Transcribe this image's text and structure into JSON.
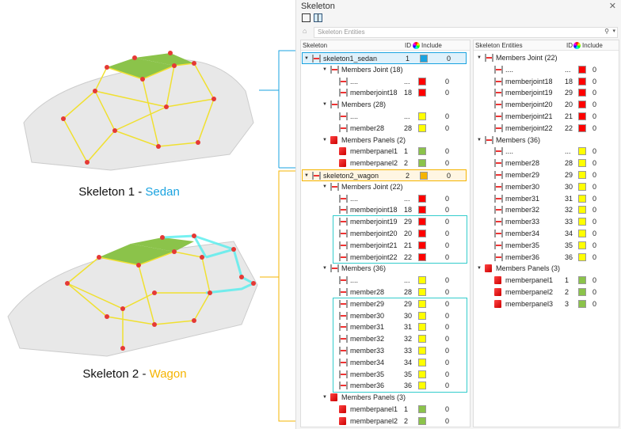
{
  "captions": {
    "sedan_prefix": "Skeleton 1 - ",
    "sedan": "Sedan",
    "wagon_prefix": "Skeleton 2 - ",
    "wagon": "Wagon"
  },
  "colors": {
    "sedan": "#1aa3e0",
    "wagon": "#f5b400",
    "joint": "#ff0000",
    "member": "#ffff00",
    "panel": "#8bc34a",
    "highlight": "#33cccc"
  },
  "panel": {
    "title": "Skeleton",
    "close": "✕",
    "search_placeholder": "Skeleton Entities",
    "left_headers": {
      "name": "Skeleton",
      "id": "ID",
      "include": "Include"
    },
    "right_headers": {
      "name": "Skeleton Entities",
      "id": "ID",
      "include": "Include"
    }
  },
  "left_rows": [
    {
      "lvl": 0,
      "t": "skel",
      "name": "skeleton1_sedan",
      "id": "1",
      "c": "#1aa3e0",
      "inc": "0"
    },
    {
      "lvl": 1,
      "t": "folder",
      "name": "Members Joint (18)"
    },
    {
      "lvl": 2,
      "t": "joint",
      "name": "....",
      "id": "...",
      "c": "#ff0000",
      "inc": "0"
    },
    {
      "lvl": 2,
      "t": "joint",
      "name": "memberjoint18",
      "id": "18",
      "c": "#ff0000",
      "inc": "0"
    },
    {
      "lvl": 1,
      "t": "folder",
      "name": "Members (28)"
    },
    {
      "lvl": 2,
      "t": "joint",
      "name": "....",
      "id": "...",
      "c": "#ffff00",
      "inc": "0"
    },
    {
      "lvl": 2,
      "t": "joint",
      "name": "member28",
      "id": "28",
      "c": "#ffff00",
      "inc": "0"
    },
    {
      "lvl": 1,
      "t": "pfolder",
      "name": "Members Panels (2)"
    },
    {
      "lvl": 2,
      "t": "panel",
      "name": "memberpanel1",
      "id": "1",
      "c": "#8bc34a",
      "inc": "0"
    },
    {
      "lvl": 2,
      "t": "panel",
      "name": "memberpanel2",
      "id": "2",
      "c": "#8bc34a",
      "inc": "0"
    },
    {
      "lvl": 0,
      "t": "skel",
      "name": "skeleton2_wagon",
      "id": "2",
      "c": "#f5b400",
      "inc": "0"
    },
    {
      "lvl": 1,
      "t": "folder",
      "name": "Members Joint (22)"
    },
    {
      "lvl": 2,
      "t": "joint",
      "name": "....",
      "id": "...",
      "c": "#ff0000",
      "inc": "0"
    },
    {
      "lvl": 2,
      "t": "joint",
      "name": "memberjoint18",
      "id": "18",
      "c": "#ff0000",
      "inc": "0"
    },
    {
      "lvl": 2,
      "t": "joint",
      "name": "memberjoint19",
      "id": "29",
      "c": "#ff0000",
      "inc": "0"
    },
    {
      "lvl": 2,
      "t": "joint",
      "name": "memberjoint20",
      "id": "20",
      "c": "#ff0000",
      "inc": "0"
    },
    {
      "lvl": 2,
      "t": "joint",
      "name": "memberjoint21",
      "id": "21",
      "c": "#ff0000",
      "inc": "0"
    },
    {
      "lvl": 2,
      "t": "joint",
      "name": "memberjoint22",
      "id": "22",
      "c": "#ff0000",
      "inc": "0"
    },
    {
      "lvl": 1,
      "t": "folder",
      "name": "Members (36)"
    },
    {
      "lvl": 2,
      "t": "joint",
      "name": "....",
      "id": "...",
      "c": "#ffff00",
      "inc": "0"
    },
    {
      "lvl": 2,
      "t": "joint",
      "name": "member28",
      "id": "28",
      "c": "#ffff00",
      "inc": "0"
    },
    {
      "lvl": 2,
      "t": "joint",
      "name": "member29",
      "id": "29",
      "c": "#ffff00",
      "inc": "0"
    },
    {
      "lvl": 2,
      "t": "joint",
      "name": "member30",
      "id": "30",
      "c": "#ffff00",
      "inc": "0"
    },
    {
      "lvl": 2,
      "t": "joint",
      "name": "member31",
      "id": "31",
      "c": "#ffff00",
      "inc": "0"
    },
    {
      "lvl": 2,
      "t": "joint",
      "name": "member32",
      "id": "32",
      "c": "#ffff00",
      "inc": "0"
    },
    {
      "lvl": 2,
      "t": "joint",
      "name": "member33",
      "id": "33",
      "c": "#ffff00",
      "inc": "0"
    },
    {
      "lvl": 2,
      "t": "joint",
      "name": "member34",
      "id": "34",
      "c": "#ffff00",
      "inc": "0"
    },
    {
      "lvl": 2,
      "t": "joint",
      "name": "member35",
      "id": "35",
      "c": "#ffff00",
      "inc": "0"
    },
    {
      "lvl": 2,
      "t": "joint",
      "name": "member36",
      "id": "36",
      "c": "#ffff00",
      "inc": "0"
    },
    {
      "lvl": 1,
      "t": "pfolder",
      "name": "Members Panels (3)"
    },
    {
      "lvl": 2,
      "t": "panel",
      "name": "memberpanel1",
      "id": "1",
      "c": "#8bc34a",
      "inc": "0"
    },
    {
      "lvl": 2,
      "t": "panel",
      "name": "memberpanel2",
      "id": "2",
      "c": "#8bc34a",
      "inc": "0"
    }
  ],
  "right_rows": [
    {
      "lvl": 0,
      "t": "folder",
      "name": "Members Joint (22)"
    },
    {
      "lvl": 1,
      "t": "joint",
      "name": "....",
      "id": "...",
      "c": "#ff0000",
      "inc": "0"
    },
    {
      "lvl": 1,
      "t": "joint",
      "name": "memberjoint18",
      "id": "18",
      "c": "#ff0000",
      "inc": "0"
    },
    {
      "lvl": 1,
      "t": "joint",
      "name": "memberjoint19",
      "id": "29",
      "c": "#ff0000",
      "inc": "0"
    },
    {
      "lvl": 1,
      "t": "joint",
      "name": "memberjoint20",
      "id": "20",
      "c": "#ff0000",
      "inc": "0"
    },
    {
      "lvl": 1,
      "t": "joint",
      "name": "memberjoint21",
      "id": "21",
      "c": "#ff0000",
      "inc": "0"
    },
    {
      "lvl": 1,
      "t": "joint",
      "name": "memberjoint22",
      "id": "22",
      "c": "#ff0000",
      "inc": "0"
    },
    {
      "lvl": 0,
      "t": "folder",
      "name": "Members (36)"
    },
    {
      "lvl": 1,
      "t": "joint",
      "name": "....",
      "id": "...",
      "c": "#ffff00",
      "inc": "0"
    },
    {
      "lvl": 1,
      "t": "joint",
      "name": "member28",
      "id": "28",
      "c": "#ffff00",
      "inc": "0"
    },
    {
      "lvl": 1,
      "t": "joint",
      "name": "member29",
      "id": "29",
      "c": "#ffff00",
      "inc": "0"
    },
    {
      "lvl": 1,
      "t": "joint",
      "name": "member30",
      "id": "30",
      "c": "#ffff00",
      "inc": "0"
    },
    {
      "lvl": 1,
      "t": "joint",
      "name": "member31",
      "id": "31",
      "c": "#ffff00",
      "inc": "0"
    },
    {
      "lvl": 1,
      "t": "joint",
      "name": "member32",
      "id": "32",
      "c": "#ffff00",
      "inc": "0"
    },
    {
      "lvl": 1,
      "t": "joint",
      "name": "member33",
      "id": "33",
      "c": "#ffff00",
      "inc": "0"
    },
    {
      "lvl": 1,
      "t": "joint",
      "name": "member34",
      "id": "34",
      "c": "#ffff00",
      "inc": "0"
    },
    {
      "lvl": 1,
      "t": "joint",
      "name": "member35",
      "id": "35",
      "c": "#ffff00",
      "inc": "0"
    },
    {
      "lvl": 1,
      "t": "joint",
      "name": "member36",
      "id": "36",
      "c": "#ffff00",
      "inc": "0"
    },
    {
      "lvl": 0,
      "t": "pfolder",
      "name": "Members Panels (3)"
    },
    {
      "lvl": 1,
      "t": "panel",
      "name": "memberpanel1",
      "id": "1",
      "c": "#8bc34a",
      "inc": "0"
    },
    {
      "lvl": 1,
      "t": "panel",
      "name": "memberpanel2",
      "id": "2",
      "c": "#8bc34a",
      "inc": "0"
    },
    {
      "lvl": 1,
      "t": "panel",
      "name": "memberpanel3",
      "id": "3",
      "c": "#8bc34a",
      "inc": "0"
    }
  ]
}
